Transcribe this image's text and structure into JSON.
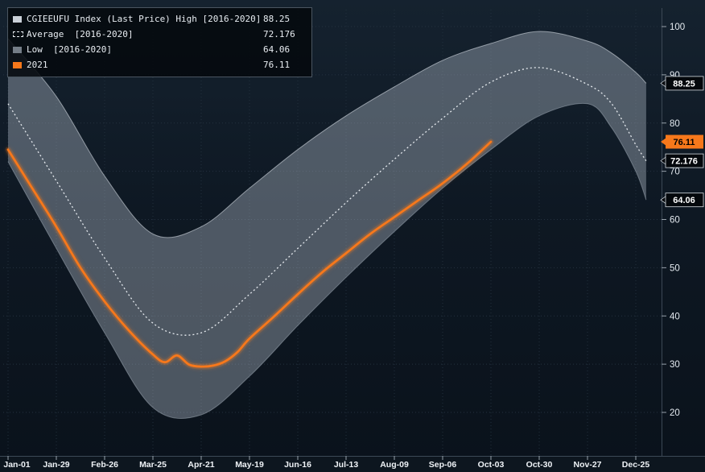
{
  "chart": {
    "legend": {
      "items": [
        {
          "label": "CGIEEUFU Index (Last Price) High [2016-2020]",
          "value": "88.25"
        },
        {
          "label": "Average  [2016-2020]",
          "value": "72.176"
        },
        {
          "label": "Low  [2016-2020]",
          "value": "64.06"
        },
        {
          "label": "2021",
          "value": "76.11"
        }
      ]
    },
    "colors": {
      "background": "#0e1823",
      "band_fill": "#b9c3cf",
      "average_line": "#eef2f7",
      "series_2021": "#f7781b",
      "grid": "#24313f",
      "axis_text": "#e4eaf0"
    }
  },
  "chart_data": {
    "type": "line",
    "x_axis": {
      "tick_labels": [
        "Jan-01",
        "Jan-29",
        "Feb-26",
        "Mar-25",
        "Apr-21",
        "May-19",
        "Jun-16",
        "Jul-13",
        "Aug-09",
        "Sep-06",
        "Oct-03",
        "Oct-30",
        "Nov-27",
        "Dec-25"
      ],
      "tick_days": [
        0,
        28,
        56,
        84,
        112,
        140,
        168,
        196,
        224,
        252,
        280,
        308,
        336,
        364
      ]
    },
    "y_axis": {
      "ticks": [
        20,
        30,
        40,
        50,
        60,
        70,
        80,
        90,
        100
      ],
      "range": [
        11,
        104
      ]
    },
    "band": {
      "name": "High-Low range [2016-2020]",
      "fill": "#b9c3cf",
      "opacity": 0.38,
      "days": [
        0,
        28,
        56,
        84,
        112,
        140,
        168,
        196,
        224,
        252,
        280,
        308,
        336,
        350,
        364,
        370
      ],
      "high": [
        97.5,
        85.5,
        69,
        57,
        58.5,
        66.5,
        74.5,
        81.5,
        87.5,
        93,
        96.5,
        99,
        97,
        94.5,
        90.5,
        88.25
      ],
      "low": [
        72,
        54,
        36.5,
        21,
        19.5,
        27.5,
        38,
        48,
        57.5,
        66.5,
        74.5,
        81.5,
        84,
        79,
        70,
        64.06
      ],
      "high_last": 88.25,
      "low_last": 64.06
    },
    "average": {
      "name": "Average [2016-2020]",
      "color": "#eef2f7",
      "dash": "dotted",
      "days": [
        0,
        28,
        56,
        84,
        112,
        140,
        168,
        196,
        224,
        252,
        280,
        308,
        336,
        350,
        364,
        370
      ],
      "values": [
        84,
        68,
        52,
        38.5,
        36.5,
        44.5,
        54,
        63.5,
        72.5,
        81,
        88.5,
        91.5,
        88,
        84,
        75.5,
        72.176
      ],
      "last": 72.176
    },
    "series_2021": {
      "name": "2021",
      "color": "#f7781b",
      "days": [
        0,
        14,
        28,
        42,
        56,
        70,
        84,
        91,
        98,
        105,
        112,
        119,
        126,
        133,
        140,
        154,
        168,
        182,
        196,
        210,
        224,
        238,
        252,
        266,
        280
      ],
      "values": [
        74.5,
        66.5,
        58.5,
        50,
        43,
        37,
        32,
        30.4,
        31.8,
        29.9,
        29.5,
        29.7,
        30.6,
        32.5,
        35.3,
        39.8,
        44.5,
        49,
        53,
        57,
        60.5,
        64,
        67.5,
        71.5,
        76.11
      ],
      "last": 76.11
    },
    "axis_markers": [
      {
        "label": "88.25",
        "value": 88.25,
        "style": "dark"
      },
      {
        "label": "76.11",
        "value": 76.11,
        "style": "orange"
      },
      {
        "label": "72.176",
        "value": 72.176,
        "style": "dark"
      },
      {
        "label": "64.06",
        "value": 64.06,
        "style": "dark"
      }
    ]
  }
}
